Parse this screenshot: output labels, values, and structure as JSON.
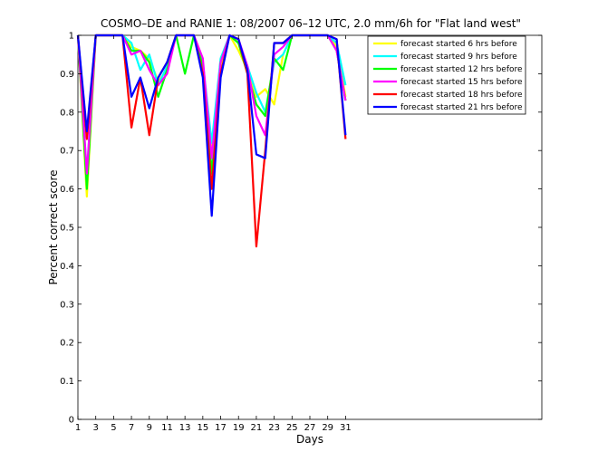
{
  "chart_data": {
    "type": "line",
    "title": "COSMO–DE and RANIE 1: 08/2007 06–12 UTC, 2.0 mm/6h for \"Flat land west\"",
    "xlabel": "Days",
    "ylabel": "Percent correct score",
    "xlim": [
      1,
      53
    ],
    "ylim": [
      0,
      1
    ],
    "x_ticks": [
      1,
      3,
      5,
      7,
      9,
      11,
      13,
      15,
      17,
      19,
      21,
      23,
      25,
      27,
      29,
      31
    ],
    "y_ticks": [
      0,
      0.1,
      0.2,
      0.3,
      0.4,
      0.5,
      0.6,
      0.7,
      0.8,
      0.9,
      1
    ],
    "y_tick_labels": [
      "0",
      "0.1",
      "0.2",
      "0.3",
      "0.4",
      "0.5",
      "0.6",
      "0.7",
      "0.8",
      "0.9",
      "1"
    ],
    "grid": false,
    "legend_position": "top-right",
    "x": [
      1,
      2,
      3,
      4,
      5,
      6,
      7,
      8,
      9,
      10,
      11,
      12,
      13,
      14,
      15,
      16,
      17,
      18,
      19,
      20,
      21,
      22,
      23,
      24,
      25,
      26,
      27,
      28,
      29,
      30,
      31
    ],
    "series": [
      {
        "name": "forecast started 6 hrs before",
        "color": "#ffff00",
        "values": [
          1.0,
          0.58,
          1.0,
          1.0,
          1.0,
          1.0,
          0.97,
          0.96,
          0.94,
          0.88,
          0.91,
          1.0,
          1.0,
          1.0,
          0.91,
          0.69,
          0.92,
          1.0,
          0.96,
          0.91,
          0.84,
          0.86,
          0.82,
          0.95,
          1.0,
          1.0,
          1.0,
          1.0,
          1.0,
          0.97,
          0.84
        ]
      },
      {
        "name": "forecast started 9 hrs before",
        "color": "#00ffff",
        "values": [
          1.0,
          0.64,
          1.0,
          1.0,
          1.0,
          1.0,
          0.98,
          0.91,
          0.95,
          0.87,
          0.92,
          1.0,
          1.0,
          1.0,
          0.93,
          0.72,
          0.94,
          1.0,
          0.98,
          0.92,
          0.85,
          0.8,
          0.93,
          0.95,
          1.0,
          1.0,
          1.0,
          1.0,
          1.0,
          0.98,
          0.87
        ]
      },
      {
        "name": "forecast started 12 hrs before",
        "color": "#00ff00",
        "values": [
          1.0,
          0.6,
          1.0,
          1.0,
          1.0,
          1.0,
          0.96,
          0.96,
          0.93,
          0.84,
          0.91,
          1.0,
          0.9,
          1.0,
          0.92,
          0.64,
          0.93,
          1.0,
          0.98,
          0.9,
          0.82,
          0.79,
          0.94,
          0.91,
          1.0,
          1.0,
          1.0,
          1.0,
          1.0,
          0.96,
          0.83
        ]
      },
      {
        "name": "forecast started 15 hrs before",
        "color": "#ff00ff",
        "values": [
          1.0,
          0.64,
          1.0,
          1.0,
          1.0,
          1.0,
          0.95,
          0.96,
          0.91,
          0.87,
          0.9,
          1.0,
          1.0,
          1.0,
          0.94,
          0.68,
          0.93,
          1.0,
          0.99,
          0.92,
          0.79,
          0.74,
          0.95,
          0.97,
          1.0,
          1.0,
          1.0,
          1.0,
          1.0,
          0.96,
          0.83
        ]
      },
      {
        "name": "forecast started 18 hrs before",
        "color": "#ff0000",
        "values": [
          1.0,
          0.73,
          1.0,
          1.0,
          1.0,
          1.0,
          0.76,
          0.89,
          0.74,
          0.89,
          0.93,
          1.0,
          1.0,
          1.0,
          0.9,
          0.6,
          0.9,
          1.0,
          0.99,
          0.9,
          0.45,
          0.7,
          0.98,
          0.98,
          1.0,
          1.0,
          1.0,
          1.0,
          1.0,
          0.99,
          0.73
        ]
      },
      {
        "name": "forecast started 21 hrs before",
        "color": "#0000ff",
        "values": [
          1.0,
          0.75,
          1.0,
          1.0,
          1.0,
          1.0,
          0.84,
          0.89,
          0.81,
          0.89,
          0.93,
          1.0,
          1.0,
          1.0,
          0.89,
          0.53,
          0.89,
          1.0,
          0.99,
          0.91,
          0.69,
          0.68,
          0.98,
          0.98,
          1.0,
          1.0,
          1.0,
          1.0,
          1.0,
          0.99,
          0.74
        ]
      }
    ]
  }
}
